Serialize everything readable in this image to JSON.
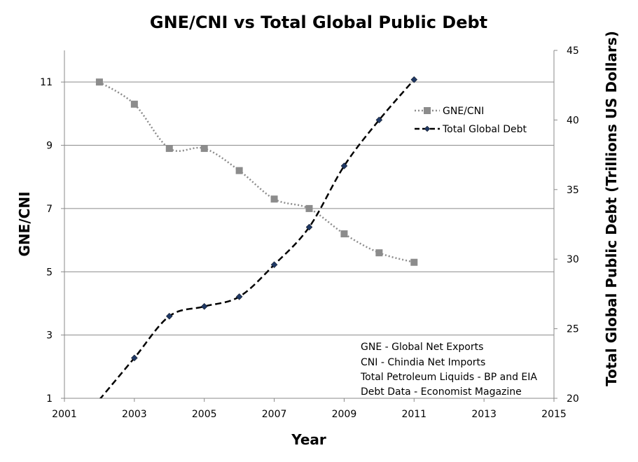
{
  "chart_data": {
    "type": "line",
    "title": "GNE/CNI vs Total Global Public Debt",
    "xlabel": "Year",
    "ylabel": "GNE/CNI",
    "y2label": "Total Global Public Debt (Trillions US Dollars)",
    "xlim": [
      2001,
      2015
    ],
    "xticks": [
      "2001",
      "2003",
      "2005",
      "2007",
      "2009",
      "2011",
      "2013",
      "2015"
    ],
    "ylim": [
      1,
      12
    ],
    "yticks": [
      "1",
      "3",
      "5",
      "7",
      "9",
      "11"
    ],
    "y2lim": [
      20,
      45
    ],
    "y2ticks": [
      "20",
      "25",
      "30",
      "35",
      "40",
      "45"
    ],
    "grid": "horizontal",
    "legend_position": "top-right",
    "series": [
      {
        "name": "GNE/CNI",
        "axis": "left",
        "color": "#8c8c8c",
        "style": "dotted",
        "marker": "square",
        "x": [
          2002,
          2003,
          2004,
          2005,
          2006,
          2007,
          2008,
          2009,
          2010,
          2011
        ],
        "values": [
          11.0,
          10.3,
          8.9,
          8.9,
          8.2,
          7.3,
          7.0,
          6.2,
          5.6,
          5.3
        ]
      },
      {
        "name": "Total Global Debt",
        "axis": "right",
        "color": "#000000",
        "marker_color": "#1f3864",
        "style": "dashed",
        "marker": "diamond",
        "x": [
          2002,
          2003,
          2004,
          2005,
          2006,
          2007,
          2008,
          2009,
          2010,
          2011
        ],
        "values": [
          19.9,
          22.9,
          25.9,
          26.6,
          27.3,
          29.6,
          32.3,
          36.7,
          40.0,
          42.9
        ]
      }
    ],
    "annotations": [
      "GNE - Global Net Exports",
      "CNI - Chindia Net Imports",
      "Total Petroleum Liquids - BP and EIA",
      "Debt Data - Economist Magazine"
    ]
  }
}
